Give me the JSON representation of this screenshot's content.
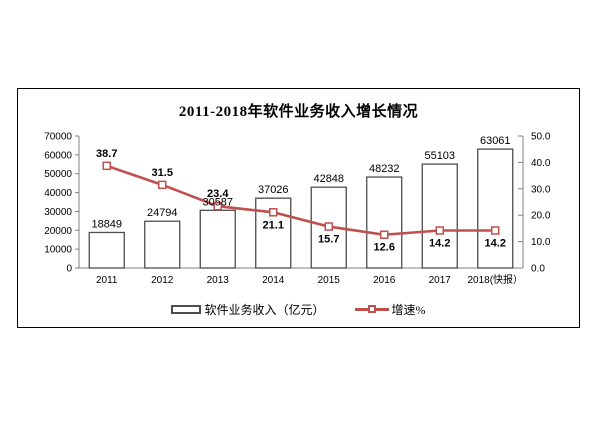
{
  "frame": {
    "title": "2011-2018年软件业务收入增长情况"
  },
  "legend": {
    "bar_label": "软件业务收入（亿元）",
    "line_label": "增速%"
  },
  "chart_data": {
    "type": "bar+line combo",
    "title": "2011-2018年软件业务收入增长情况",
    "categories": [
      "2011",
      "2012",
      "2013",
      "2014",
      "2015",
      "2016",
      "2017",
      "2018(快报）"
    ],
    "series": [
      {
        "name": "软件业务收入（亿元）",
        "type": "bar",
        "axis": "left",
        "values": [
          18849,
          24794,
          30587,
          37026,
          42848,
          48232,
          55103,
          63061
        ]
      },
      {
        "name": "增速%",
        "type": "line",
        "axis": "right",
        "values": [
          38.7,
          31.5,
          23.4,
          21.1,
          15.7,
          12.6,
          14.2,
          14.2
        ],
        "label_pos": [
          "above",
          "above",
          "above",
          "below",
          "below",
          "below",
          "below",
          "below"
        ]
      }
    ],
    "left_axis": {
      "min": 0,
      "max": 70000,
      "step": 10000,
      "tick_labels": [
        "0",
        "10000",
        "20000",
        "30000",
        "40000",
        "50000",
        "60000",
        "70000"
      ]
    },
    "right_axis": {
      "min": 0,
      "max": 50,
      "step": 10,
      "tick_labels": [
        "0.0",
        "10.0",
        "20.0",
        "30.0",
        "40.0",
        "50.0"
      ]
    },
    "grid": "off",
    "legend_position": "bottom",
    "colors": {
      "bar_fill": "#ffffff",
      "bar_border": "#4d4d4d",
      "line": "#c0504d",
      "marker_fill": "#ffffff",
      "axis": "#808080",
      "text": "#000000"
    }
  }
}
